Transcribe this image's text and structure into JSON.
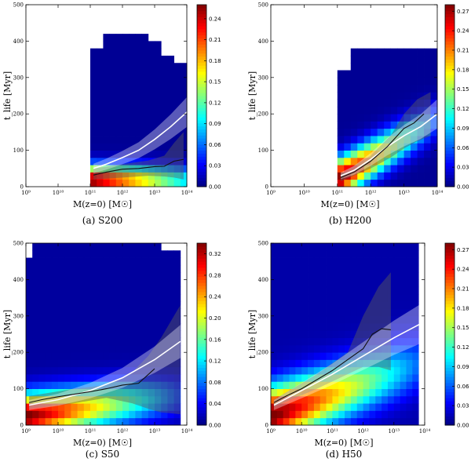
{
  "chart_data": [
    {
      "type": "heatmap",
      "caption": "(a) S200",
      "xlabel": "M(z=0) [M☉]",
      "ylabel": "t_life [Myr]",
      "xscale": "log",
      "xlim": [
        1000000000.0,
        100000000000000.0
      ],
      "ylim": [
        0,
        500
      ],
      "x_ticks": [
        "10⁹",
        "10¹⁰",
        "10¹¹",
        "10¹²",
        "10¹³",
        "10¹⁴"
      ],
      "y_ticks": [
        "0",
        "100",
        "200",
        "300",
        "400",
        "500"
      ],
      "colorbar_ticks": [
        "0.00",
        "0.03",
        "0.06",
        "0.09",
        "0.12",
        "0.15",
        "0.18",
        "0.21",
        "0.24"
      ],
      "colorbar_max": 0.26,
      "median_line": {
        "log_mass": [
          11.1,
          11.5,
          12.0,
          12.5,
          13.0,
          13.3,
          13.6,
          13.9
        ],
        "t_life": [
          32,
          40,
          48,
          50,
          55,
          56,
          70,
          75
        ]
      },
      "mean_line": {
        "log_mass": [
          11.1,
          11.5,
          12.0,
          12.5,
          13.0,
          13.5,
          14.0
        ],
        "t_life": [
          50,
          62,
          80,
          100,
          130,
          165,
          205
        ]
      },
      "band": {
        "log_mass": [
          11.1,
          12.0,
          12.8,
          13.3,
          13.6,
          13.9
        ],
        "low": [
          20,
          25,
          30,
          28,
          25,
          20
        ],
        "high": [
          50,
          62,
          72,
          85,
          120,
          150
        ]
      }
    },
    {
      "type": "heatmap",
      "caption": "(b) H200",
      "xlabel": "M(z=0) [M☉]",
      "ylabel": "t_life [Myr]",
      "xscale": "log",
      "xlim": [
        1000000000.0,
        100000000000000.0
      ],
      "ylim": [
        0,
        500
      ],
      "x_ticks": [
        "10⁹",
        "10¹⁰",
        "10¹¹",
        "10¹²",
        "10¹³",
        "10¹⁴"
      ],
      "y_ticks": [
        "0",
        "100",
        "200",
        "300",
        "400",
        "500"
      ],
      "colorbar_ticks": [
        "0.00",
        "0.03",
        "0.06",
        "0.09",
        "0.12",
        "0.15",
        "0.18",
        "0.21",
        "0.24",
        "0.27"
      ],
      "colorbar_max": 0.28,
      "median_line": {
        "log_mass": [
          11.1,
          11.5,
          12.0,
          12.5,
          12.8,
          13.0,
          13.3,
          13.6
        ],
        "t_life": [
          25,
          40,
          70,
          110,
          140,
          160,
          175,
          200
        ]
      },
      "mean_line": {
        "log_mass": [
          11.1,
          11.5,
          12.0,
          12.5,
          13.0,
          13.5,
          14.0
        ],
        "t_life": [
          30,
          45,
          75,
          110,
          140,
          165,
          200
        ]
      },
      "band": {
        "log_mass": [
          11.1,
          12.0,
          12.6,
          13.0,
          13.4,
          13.8
        ],
        "low": [
          15,
          50,
          80,
          105,
          125,
          140
        ],
        "high": [
          35,
          85,
          140,
          200,
          240,
          260
        ]
      }
    },
    {
      "type": "heatmap",
      "caption": "(c) S50",
      "xlabel": "M(z=0) [M☉]",
      "ylabel": "t_life [Myr]",
      "xscale": "log",
      "xlim": [
        1000000000.0,
        100000000000000.0
      ],
      "ylim": [
        0,
        500
      ],
      "x_ticks": [
        "10⁹",
        "10¹⁰",
        "10¹¹",
        "10¹²",
        "10¹³",
        "10¹⁴"
      ],
      "y_ticks": [
        "0",
        "100",
        "200",
        "300",
        "400",
        "500"
      ],
      "colorbar_ticks": [
        "0.00",
        "0.04",
        "0.08",
        "0.12",
        "0.16",
        "0.20",
        "0.24",
        "0.28",
        "0.32"
      ],
      "colorbar_max": 0.34,
      "median_line": {
        "log_mass": [
          9.1,
          9.5,
          10.0,
          10.5,
          11.0,
          11.5,
          12.0,
          12.5,
          13.0
        ],
        "t_life": [
          62,
          70,
          78,
          85,
          92,
          100,
          110,
          115,
          155
        ]
      },
      "mean_line": {
        "log_mass": [
          9.1,
          10.0,
          11.0,
          12.0,
          13.0,
          13.8
        ],
        "t_life": [
          55,
          70,
          95,
          130,
          180,
          230
        ]
      },
      "band": {
        "log_mass": [
          9.1,
          10.5,
          11.5,
          12.3,
          12.8,
          13.2,
          13.8
        ],
        "low": [
          45,
          60,
          75,
          60,
          45,
          35,
          30
        ],
        "high": [
          80,
          100,
          110,
          145,
          190,
          240,
          330
        ]
      }
    },
    {
      "type": "heatmap",
      "caption": "(d) H50",
      "xlabel": "M(z=0) [M☉]",
      "ylabel": "t_life [Myr]",
      "xscale": "log",
      "xlim": [
        1000000000.0,
        100000000000000.0
      ],
      "ylim": [
        0,
        500
      ],
      "x_ticks": [
        "10⁹",
        "10¹⁰",
        "10¹¹",
        "10¹²",
        "10¹³",
        "10¹⁴"
      ],
      "y_ticks": [
        "0",
        "100",
        "200",
        "300",
        "400",
        "500"
      ],
      "colorbar_ticks": [
        "0.00",
        "0.03",
        "0.06",
        "0.09",
        "0.12",
        "0.15",
        "0.18",
        "0.21",
        "0.24",
        "0.27"
      ],
      "colorbar_max": 0.28,
      "median_line": {
        "log_mass": [
          9.1,
          9.5,
          10.0,
          10.5,
          11.0,
          11.5,
          12.0,
          12.3,
          12.6,
          12.9
        ],
        "t_life": [
          62,
          80,
          100,
          125,
          150,
          180,
          210,
          250,
          265,
          262
        ]
      },
      "mean_line": {
        "log_mass": [
          9.1,
          10.0,
          11.0,
          12.0,
          13.0,
          13.9
        ],
        "t_life": [
          55,
          95,
          140,
          190,
          240,
          280
        ]
      },
      "band": {
        "log_mass": [
          9.1,
          10.5,
          11.5,
          12.0,
          12.5,
          12.9
        ],
        "low": [
          50,
          100,
          140,
          160,
          160,
          150
        ],
        "high": [
          70,
          140,
          200,
          300,
          380,
          420
        ]
      }
    }
  ]
}
